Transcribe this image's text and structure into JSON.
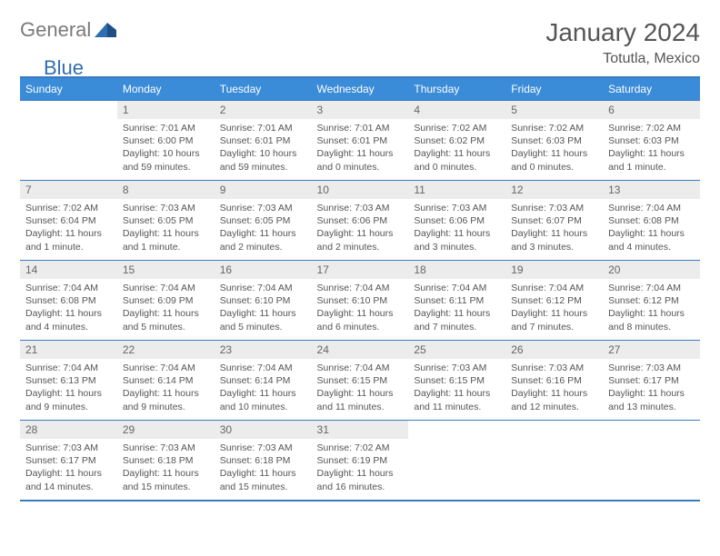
{
  "logo": {
    "text1": "General",
    "text2": "Blue"
  },
  "title": "January 2024",
  "location": "Totutla, Mexico",
  "colors": {
    "header_bg": "#3a8bd8",
    "header_text": "#ffffff",
    "rule": "#3a7bbf",
    "daynum_bg": "#ececec",
    "body_text": "#555555",
    "logo_gray": "#7a7a7a",
    "logo_blue": "#2f6fb0"
  },
  "weekdays": [
    "Sunday",
    "Monday",
    "Tuesday",
    "Wednesday",
    "Thursday",
    "Friday",
    "Saturday"
  ],
  "start_offset": 1,
  "days": [
    {
      "num": "1",
      "sunrise": "Sunrise: 7:01 AM",
      "sunset": "Sunset: 6:00 PM",
      "dl1": "Daylight: 10 hours",
      "dl2": "and 59 minutes."
    },
    {
      "num": "2",
      "sunrise": "Sunrise: 7:01 AM",
      "sunset": "Sunset: 6:01 PM",
      "dl1": "Daylight: 10 hours",
      "dl2": "and 59 minutes."
    },
    {
      "num": "3",
      "sunrise": "Sunrise: 7:01 AM",
      "sunset": "Sunset: 6:01 PM",
      "dl1": "Daylight: 11 hours",
      "dl2": "and 0 minutes."
    },
    {
      "num": "4",
      "sunrise": "Sunrise: 7:02 AM",
      "sunset": "Sunset: 6:02 PM",
      "dl1": "Daylight: 11 hours",
      "dl2": "and 0 minutes."
    },
    {
      "num": "5",
      "sunrise": "Sunrise: 7:02 AM",
      "sunset": "Sunset: 6:03 PM",
      "dl1": "Daylight: 11 hours",
      "dl2": "and 0 minutes."
    },
    {
      "num": "6",
      "sunrise": "Sunrise: 7:02 AM",
      "sunset": "Sunset: 6:03 PM",
      "dl1": "Daylight: 11 hours",
      "dl2": "and 1 minute."
    },
    {
      "num": "7",
      "sunrise": "Sunrise: 7:02 AM",
      "sunset": "Sunset: 6:04 PM",
      "dl1": "Daylight: 11 hours",
      "dl2": "and 1 minute."
    },
    {
      "num": "8",
      "sunrise": "Sunrise: 7:03 AM",
      "sunset": "Sunset: 6:05 PM",
      "dl1": "Daylight: 11 hours",
      "dl2": "and 1 minute."
    },
    {
      "num": "9",
      "sunrise": "Sunrise: 7:03 AM",
      "sunset": "Sunset: 6:05 PM",
      "dl1": "Daylight: 11 hours",
      "dl2": "and 2 minutes."
    },
    {
      "num": "10",
      "sunrise": "Sunrise: 7:03 AM",
      "sunset": "Sunset: 6:06 PM",
      "dl1": "Daylight: 11 hours",
      "dl2": "and 2 minutes."
    },
    {
      "num": "11",
      "sunrise": "Sunrise: 7:03 AM",
      "sunset": "Sunset: 6:06 PM",
      "dl1": "Daylight: 11 hours",
      "dl2": "and 3 minutes."
    },
    {
      "num": "12",
      "sunrise": "Sunrise: 7:03 AM",
      "sunset": "Sunset: 6:07 PM",
      "dl1": "Daylight: 11 hours",
      "dl2": "and 3 minutes."
    },
    {
      "num": "13",
      "sunrise": "Sunrise: 7:04 AM",
      "sunset": "Sunset: 6:08 PM",
      "dl1": "Daylight: 11 hours",
      "dl2": "and 4 minutes."
    },
    {
      "num": "14",
      "sunrise": "Sunrise: 7:04 AM",
      "sunset": "Sunset: 6:08 PM",
      "dl1": "Daylight: 11 hours",
      "dl2": "and 4 minutes."
    },
    {
      "num": "15",
      "sunrise": "Sunrise: 7:04 AM",
      "sunset": "Sunset: 6:09 PM",
      "dl1": "Daylight: 11 hours",
      "dl2": "and 5 minutes."
    },
    {
      "num": "16",
      "sunrise": "Sunrise: 7:04 AM",
      "sunset": "Sunset: 6:10 PM",
      "dl1": "Daylight: 11 hours",
      "dl2": "and 5 minutes."
    },
    {
      "num": "17",
      "sunrise": "Sunrise: 7:04 AM",
      "sunset": "Sunset: 6:10 PM",
      "dl1": "Daylight: 11 hours",
      "dl2": "and 6 minutes."
    },
    {
      "num": "18",
      "sunrise": "Sunrise: 7:04 AM",
      "sunset": "Sunset: 6:11 PM",
      "dl1": "Daylight: 11 hours",
      "dl2": "and 7 minutes."
    },
    {
      "num": "19",
      "sunrise": "Sunrise: 7:04 AM",
      "sunset": "Sunset: 6:12 PM",
      "dl1": "Daylight: 11 hours",
      "dl2": "and 7 minutes."
    },
    {
      "num": "20",
      "sunrise": "Sunrise: 7:04 AM",
      "sunset": "Sunset: 6:12 PM",
      "dl1": "Daylight: 11 hours",
      "dl2": "and 8 minutes."
    },
    {
      "num": "21",
      "sunrise": "Sunrise: 7:04 AM",
      "sunset": "Sunset: 6:13 PM",
      "dl1": "Daylight: 11 hours",
      "dl2": "and 9 minutes."
    },
    {
      "num": "22",
      "sunrise": "Sunrise: 7:04 AM",
      "sunset": "Sunset: 6:14 PM",
      "dl1": "Daylight: 11 hours",
      "dl2": "and 9 minutes."
    },
    {
      "num": "23",
      "sunrise": "Sunrise: 7:04 AM",
      "sunset": "Sunset: 6:14 PM",
      "dl1": "Daylight: 11 hours",
      "dl2": "and 10 minutes."
    },
    {
      "num": "24",
      "sunrise": "Sunrise: 7:04 AM",
      "sunset": "Sunset: 6:15 PM",
      "dl1": "Daylight: 11 hours",
      "dl2": "and 11 minutes."
    },
    {
      "num": "25",
      "sunrise": "Sunrise: 7:03 AM",
      "sunset": "Sunset: 6:15 PM",
      "dl1": "Daylight: 11 hours",
      "dl2": "and 11 minutes."
    },
    {
      "num": "26",
      "sunrise": "Sunrise: 7:03 AM",
      "sunset": "Sunset: 6:16 PM",
      "dl1": "Daylight: 11 hours",
      "dl2": "and 12 minutes."
    },
    {
      "num": "27",
      "sunrise": "Sunrise: 7:03 AM",
      "sunset": "Sunset: 6:17 PM",
      "dl1": "Daylight: 11 hours",
      "dl2": "and 13 minutes."
    },
    {
      "num": "28",
      "sunrise": "Sunrise: 7:03 AM",
      "sunset": "Sunset: 6:17 PM",
      "dl1": "Daylight: 11 hours",
      "dl2": "and 14 minutes."
    },
    {
      "num": "29",
      "sunrise": "Sunrise: 7:03 AM",
      "sunset": "Sunset: 6:18 PM",
      "dl1": "Daylight: 11 hours",
      "dl2": "and 15 minutes."
    },
    {
      "num": "30",
      "sunrise": "Sunrise: 7:03 AM",
      "sunset": "Sunset: 6:18 PM",
      "dl1": "Daylight: 11 hours",
      "dl2": "and 15 minutes."
    },
    {
      "num": "31",
      "sunrise": "Sunrise: 7:02 AM",
      "sunset": "Sunset: 6:19 PM",
      "dl1": "Daylight: 11 hours",
      "dl2": "and 16 minutes."
    }
  ]
}
